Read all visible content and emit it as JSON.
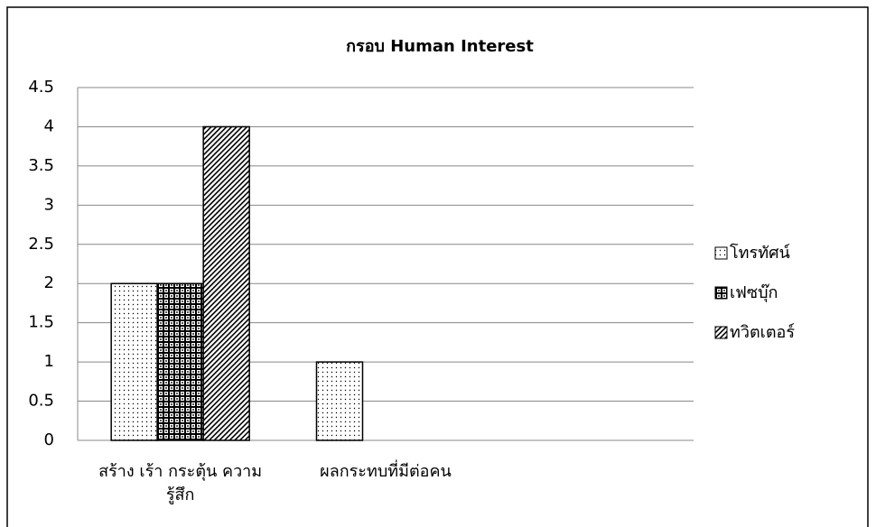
{
  "chart_data": {
    "type": "bar",
    "title": "กรอบ Human Interest",
    "categories": [
      "สร้าง เร้า กระตุ้น ความรู้สึก",
      "ผลกระทบที่มีต่อคน",
      null
    ],
    "series": [
      {
        "name": "โทรทัศน์",
        "color": "#000000",
        "pattern": "dots",
        "values": [
          2,
          1,
          null
        ]
      },
      {
        "name": "เฟซบุ๊ก",
        "color": "#000000",
        "pattern": "checker",
        "values": [
          2,
          0,
          null
        ]
      },
      {
        "name": "ทวิตเตอร์",
        "color": "#000000",
        "pattern": "hatch",
        "values": [
          4,
          0,
          null
        ]
      }
    ],
    "ylim": [
      0,
      4.5
    ],
    "yticks": [
      0,
      0.5,
      1,
      1.5,
      2,
      2.5,
      3,
      3.5,
      4,
      4.5
    ],
    "grid": true,
    "legend": "right"
  }
}
